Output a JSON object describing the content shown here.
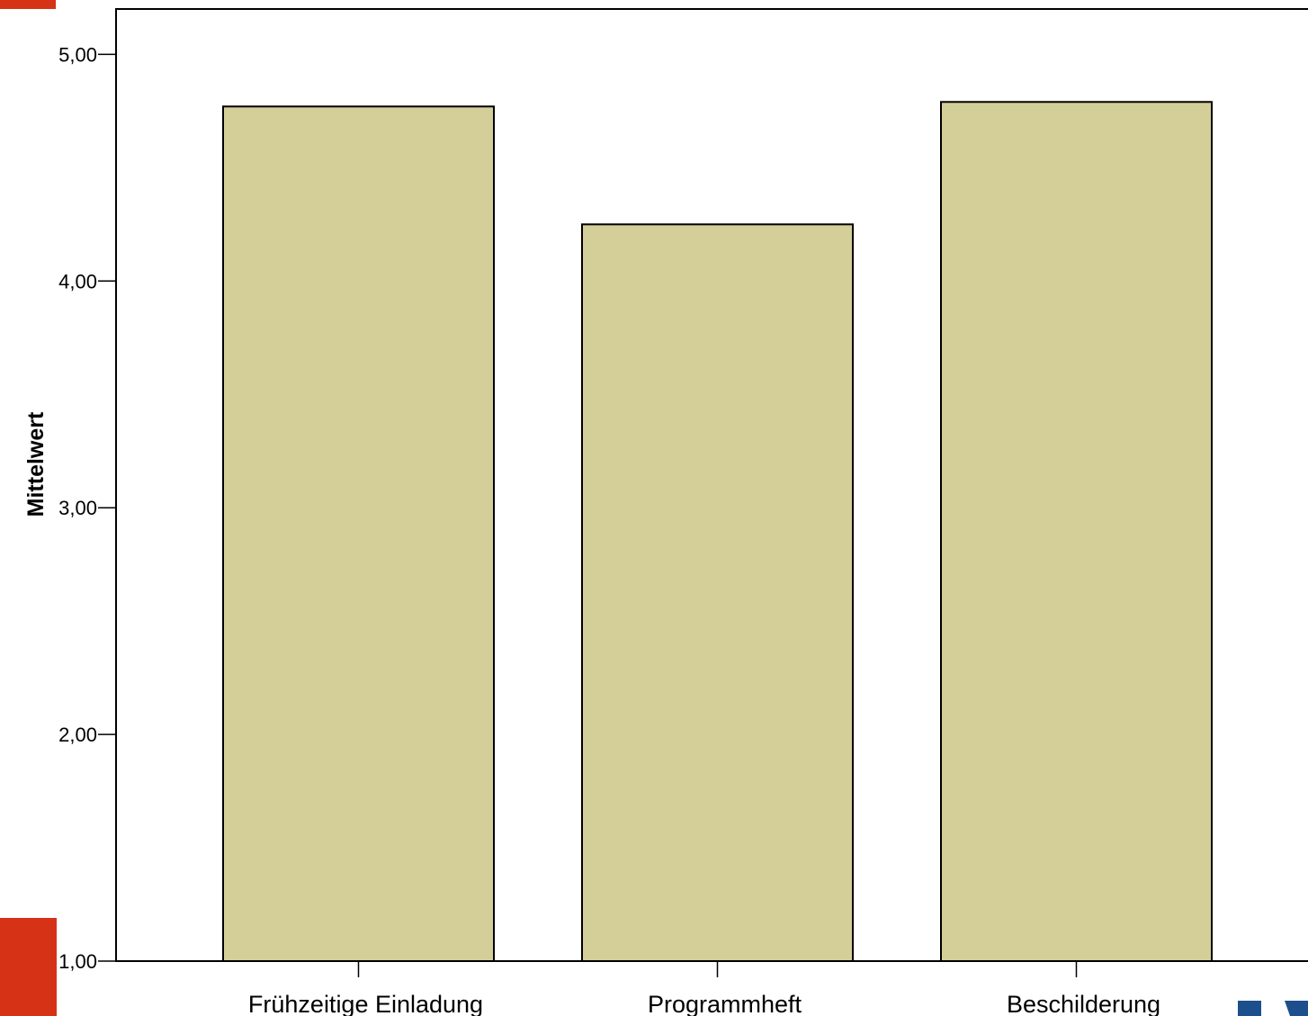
{
  "chart_data": {
    "type": "bar",
    "categories": [
      "Frühzeitige Einladung",
      "Programmheft",
      "Beschilderung"
    ],
    "values": [
      4.77,
      4.25,
      4.79
    ],
    "title": "",
    "xlabel": "",
    "ylabel": "Mittelwert",
    "ylim": [
      1,
      5.2
    ],
    "yticks": [
      1,
      2,
      3,
      4,
      5
    ],
    "ytick_labels": [
      "1,00",
      "2,00",
      "3,00",
      "4,00",
      "5,00"
    ],
    "grid": false,
    "bar_color": "#d4cf98",
    "bar_edge_color": "#000000"
  },
  "decorations": {
    "accent_red": "#d63215",
    "logo_blue": "#1c4f8c"
  }
}
